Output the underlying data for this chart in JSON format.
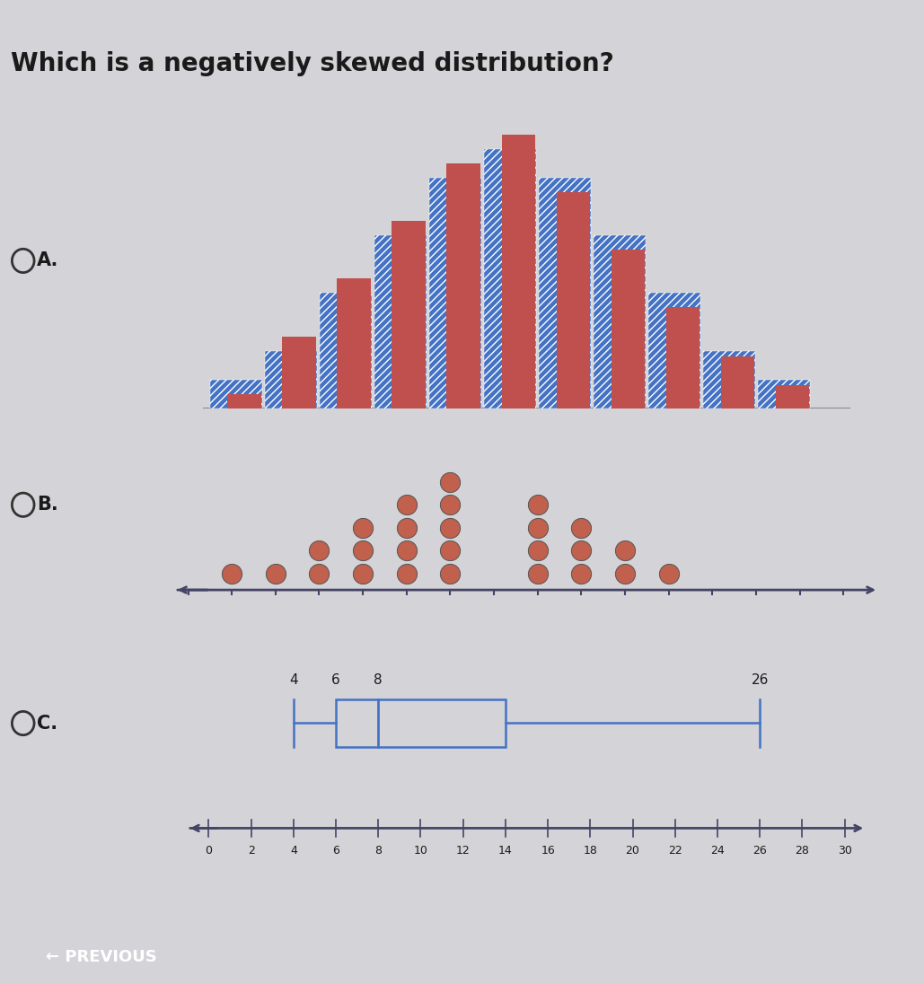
{
  "title": "Which is a negatively skewed distribution?",
  "bg_color": "#d4d4d8",
  "option_A": {
    "label": "A.",
    "blue_heights": [
      1,
      2,
      4,
      6,
      8,
      9,
      8,
      6,
      4,
      2,
      1
    ],
    "orange_heights": [
      0.5,
      2.5,
      4.5,
      6.5,
      8.5,
      9.5,
      7.5,
      5.5,
      3.5,
      1.8,
      0.8
    ],
    "blue_color": "#4472c4",
    "orange_color": "#c0504d"
  },
  "option_B": {
    "label": "B.",
    "dot_color": "#c0604d",
    "x_counts": {
      "1": 1,
      "2": 1,
      "3": 2,
      "4": 3,
      "5": 4,
      "6": 5,
      "8": 4,
      "9": 3,
      "10": 2,
      "11": 1
    }
  },
  "option_C": {
    "label": "C.",
    "min_val": 4,
    "q1": 6,
    "median": 8,
    "q3": 14,
    "max_val": 26,
    "axis_min": 0,
    "axis_max": 30,
    "box_color": "#4472c4",
    "line_color": "#4472c4"
  },
  "previous_btn_color": "#3a6abf",
  "previous_btn_text": "← PREVIOUS"
}
